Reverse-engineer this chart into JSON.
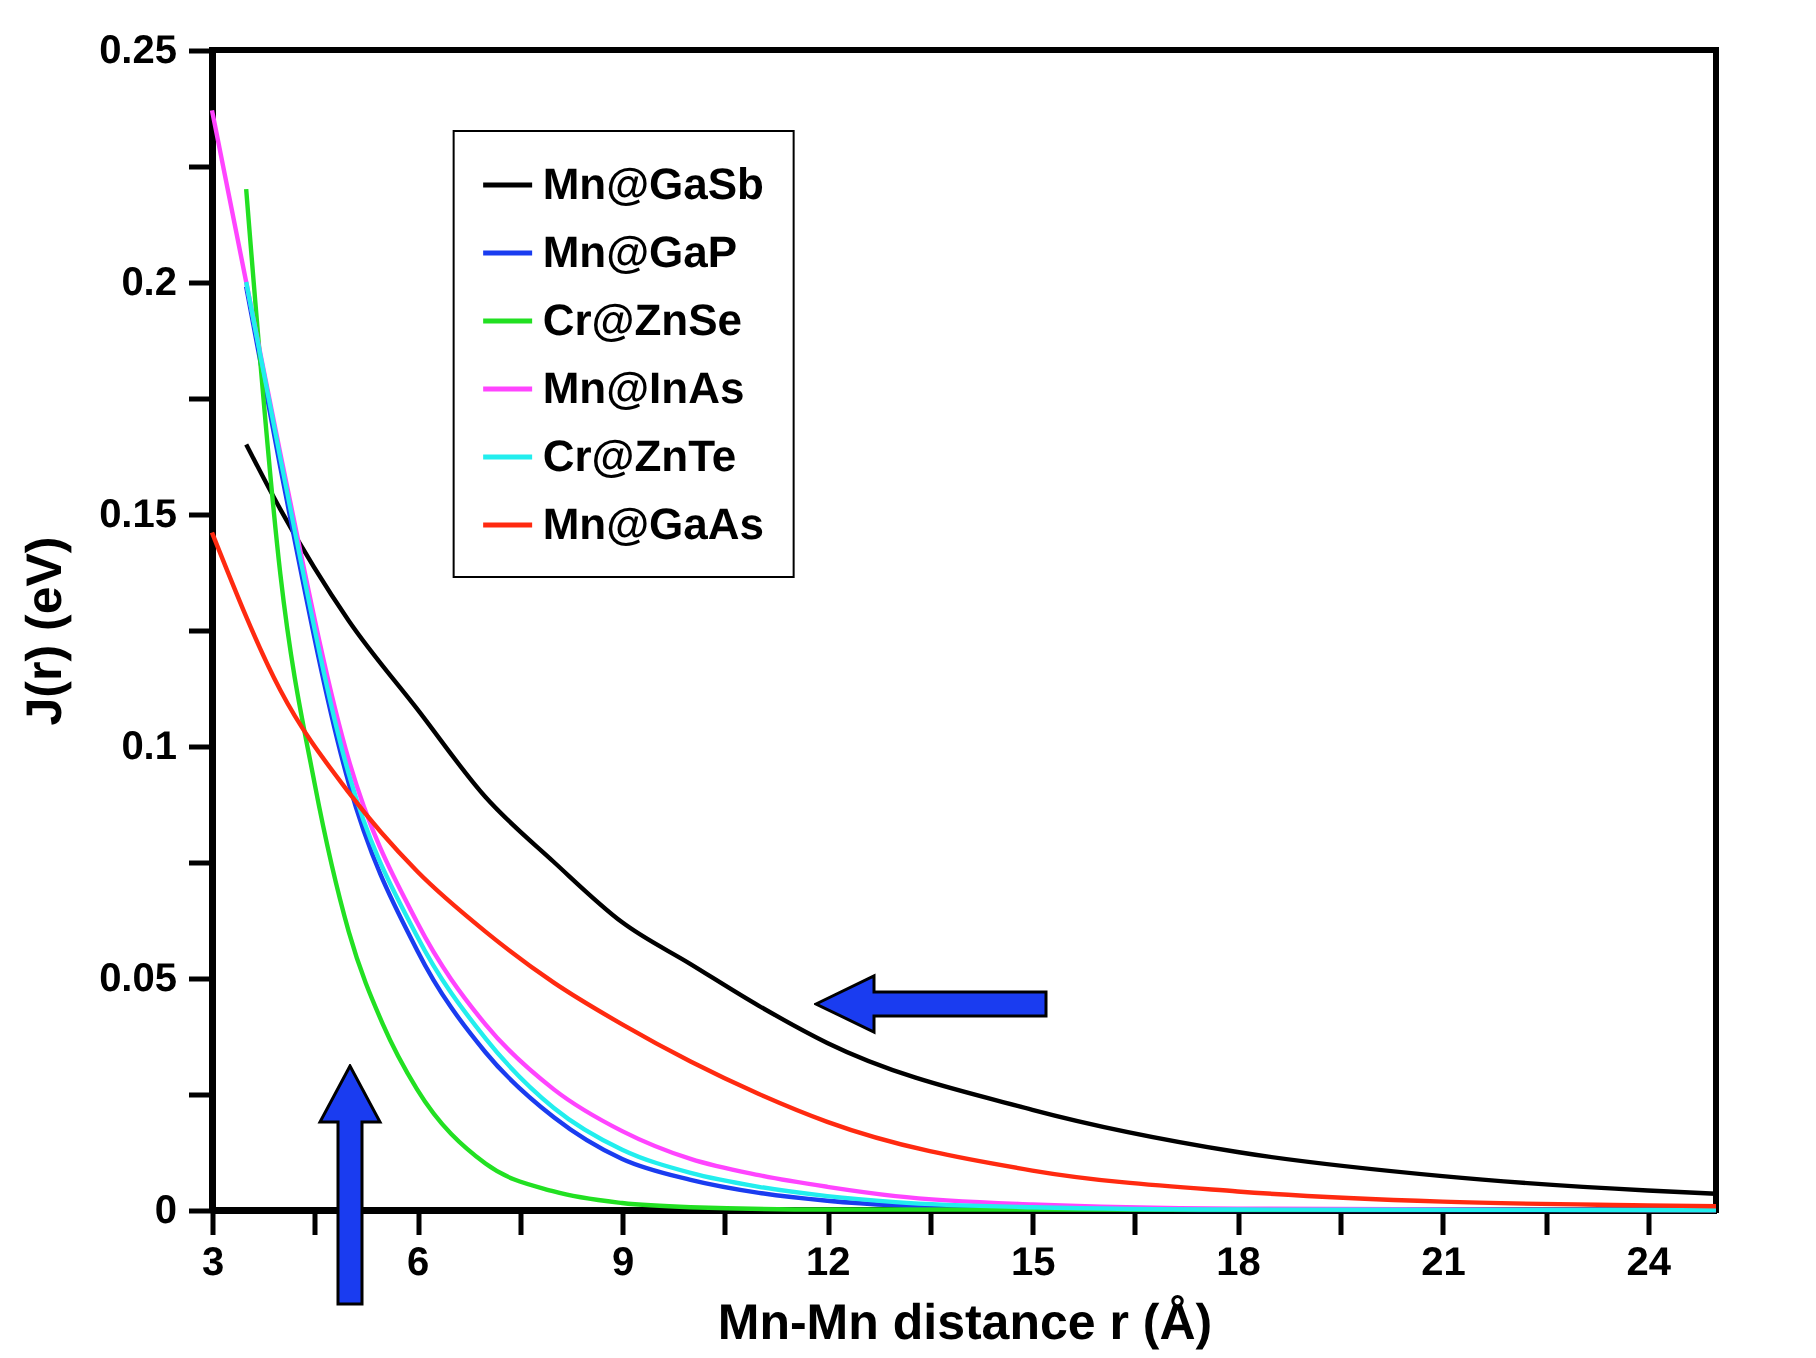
{
  "chart_data": {
    "type": "line",
    "xlabel": "Mn-Mn distance r (Å)",
    "ylabel": "J(r) (eV)",
    "xlim": [
      3,
      25
    ],
    "xticks": [
      3,
      {
        "value": 4.5,
        "label": null
      },
      6,
      {
        "value": 7.5,
        "label": null
      },
      9,
      {
        "value": 10.5,
        "label": null
      },
      12,
      {
        "value": 13.5,
        "label": null
      },
      15,
      {
        "value": 16.5,
        "label": null
      },
      18,
      {
        "value": 19.5,
        "label": null
      },
      21,
      {
        "value": 22.5,
        "label": null
      },
      24
    ],
    "ylim": [
      0,
      0.25
    ],
    "yticks": [
      0,
      {
        "value": 0.025,
        "label": null
      },
      0.05,
      {
        "value": 0.075,
        "label": null
      },
      0.1,
      {
        "value": 0.125,
        "label": null
      },
      0.15,
      {
        "value": 0.175,
        "label": null
      },
      0.2,
      {
        "value": 0.225,
        "label": null
      },
      0.25
    ],
    "legend": "top",
    "marker": "none",
    "line_style": "solid",
    "grid": false,
    "series": [
      {
        "name": "Mn@GaSb",
        "color": "#000000",
        "x": [
          3.5,
          4,
          5,
          6,
          7,
          8,
          9,
          10,
          11,
          12,
          15,
          18,
          21,
          24,
          25
        ],
        "values": [
          0.165,
          0.151,
          0.127,
          0.108,
          0.089,
          0.075,
          0.062,
          0.053,
          0.044,
          0.036,
          0.0216,
          0.0125,
          0.0073,
          0.0042,
          0.0035
        ]
      },
      {
        "name": "Mn@GaP",
        "color": "#1a3cf0",
        "x": [
          3.5,
          4,
          5,
          6,
          7,
          8,
          9,
          10,
          11,
          12,
          13,
          15,
          18,
          25
        ],
        "values": [
          0.199,
          0.16,
          0.092,
          0.056,
          0.034,
          0.02,
          0.011,
          0.0065,
          0.0037,
          0.002,
          0.001,
          0.0003,
          0,
          0
        ]
      },
      {
        "name": "Cr@ZnSe",
        "color": "#22e022",
        "x": [
          3.5,
          4,
          4.5,
          5,
          5.5,
          6,
          7,
          8,
          9,
          10,
          12,
          25
        ],
        "values": [
          0.22,
          0.137,
          0.092,
          0.06,
          0.04,
          0.026,
          0.01,
          0.004,
          0.0015,
          0.0006,
          0.0001,
          0
        ]
      },
      {
        "name": "Mn@InAs",
        "color": "#ff44ff",
        "x": [
          3,
          3.5,
          4,
          5,
          6,
          7,
          8,
          9,
          10,
          11,
          12,
          13,
          15,
          18,
          25
        ],
        "values": [
          0.237,
          0.2,
          0.163,
          0.097,
          0.062,
          0.04,
          0.026,
          0.017,
          0.011,
          0.0075,
          0.005,
          0.003,
          0.0012,
          0.0003,
          0
        ]
      },
      {
        "name": "Cr@ZnTe",
        "color": "#22eeee",
        "x": [
          3.5,
          4,
          5,
          6,
          7,
          8,
          9,
          10,
          11,
          12,
          13,
          15,
          18,
          25
        ],
        "values": [
          0.2,
          0.162,
          0.094,
          0.059,
          0.037,
          0.022,
          0.013,
          0.008,
          0.005,
          0.003,
          0.0017,
          0.0006,
          0.0001,
          0
        ]
      },
      {
        "name": "Mn@GaAs",
        "color": "#ff2a10",
        "x": [
          3,
          4,
          5,
          6,
          7,
          8,
          9,
          10,
          11,
          12,
          15,
          18,
          21,
          24,
          25
        ],
        "values": [
          0.146,
          0.112,
          0.09,
          0.073,
          0.06,
          0.049,
          0.04,
          0.032,
          0.025,
          0.019,
          0.0085,
          0.004,
          0.0018,
          0.001,
          0.0008
        ]
      }
    ]
  }
}
